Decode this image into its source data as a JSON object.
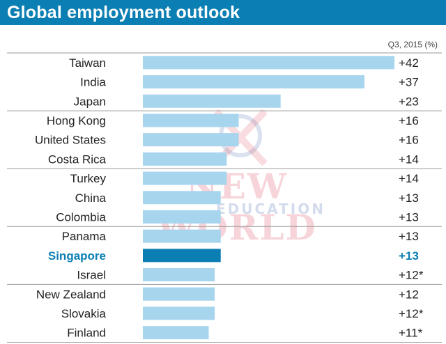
{
  "header": {
    "title": "Global employment outlook"
  },
  "watermark": {
    "main": "NEW WORLD",
    "sub": "EDUCATION"
  },
  "colors": {
    "accent": "#0b7fb3",
    "bar": "#a7d5ee",
    "highlight": "#0b7fb3",
    "divider": "#9a9a9a",
    "text": "#222222"
  },
  "chart_data": {
    "type": "bar",
    "orientation": "horizontal",
    "title": "Global employment outlook",
    "unit_note": "Q3, 2015 (%)",
    "categories": [
      "Taiwan",
      "India",
      "Japan",
      "Hong Kong",
      "United States",
      "Costa Rica",
      "Turkey",
      "China",
      "Colombia",
      "Panama",
      "Singapore",
      "Israel",
      "New Zealand",
      "Slovakia",
      "Finland"
    ],
    "values": [
      42,
      37,
      23,
      16,
      16,
      14,
      14,
      13,
      13,
      13,
      13,
      12,
      12,
      12,
      11
    ],
    "value_labels": [
      "+42",
      "+37",
      "+23",
      "+16",
      "+16",
      "+14",
      "+14",
      "+13",
      "+13",
      "+13",
      "+13",
      "+12*",
      "+12",
      "+12*",
      "+11*"
    ],
    "highlight": "Singapore",
    "xlim": [
      0,
      43
    ],
    "grid": false,
    "group_dividers_after": [
      "Japan",
      "Costa Rica",
      "Colombia",
      "Israel"
    ]
  }
}
